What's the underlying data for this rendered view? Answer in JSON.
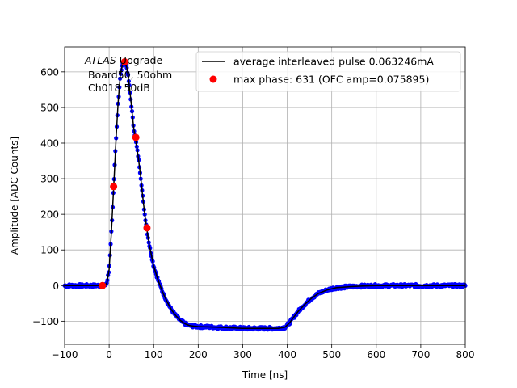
{
  "chart_data": {
    "type": "line",
    "title": "",
    "xlabel": "Time [ns]",
    "ylabel": "Amplitude [ADC Counts]",
    "xlim": [
      -100,
      800
    ],
    "ylim": [
      -165,
      670
    ],
    "xticks": [
      -100,
      0,
      100,
      200,
      300,
      400,
      500,
      600,
      700,
      800
    ],
    "yticks": [
      -100,
      0,
      100,
      200,
      300,
      400,
      500,
      600
    ],
    "grid": true,
    "legend_position": "top-right",
    "annotation": {
      "italic_part": "ATLAS",
      "rest_line1": " Upgrade",
      "line2": " Board50, 50ohm",
      "line3": " Ch018 50dB"
    },
    "series": [
      {
        "name": "average interleaved pulse 0.063246mA",
        "style": "line",
        "color": "#000000",
        "x": [
          -100,
          -50,
          -20,
          -10,
          -5,
          0,
          5,
          10,
          15,
          20,
          25,
          30,
          35,
          40,
          45,
          50,
          55,
          60,
          65,
          70,
          75,
          80,
          85,
          90,
          95,
          100,
          110,
          120,
          130,
          140,
          150,
          160,
          170,
          180,
          190,
          200,
          220,
          240,
          260,
          280,
          300,
          320,
          340,
          360,
          380,
          395,
          405,
          415,
          425,
          440,
          455,
          470,
          490,
          510,
          540,
          570,
          600,
          650,
          700,
          750,
          800
        ],
        "y": [
          0,
          0,
          0,
          0,
          8,
          45,
          150,
          270,
          400,
          510,
          590,
          622,
          628,
          610,
          565,
          505,
          445,
          405,
          365,
          315,
          255,
          200,
          155,
          115,
          85,
          55,
          15,
          -18,
          -45,
          -68,
          -85,
          -98,
          -107,
          -112,
          -114,
          -115,
          -116,
          -117,
          -118,
          -119,
          -120,
          -120,
          -120,
          -120,
          -120,
          -117,
          -105,
          -88,
          -72,
          -52,
          -35,
          -22,
          -12,
          -6,
          -3,
          -1,
          0,
          0,
          0,
          0,
          0
        ]
      },
      {
        "name": "",
        "style": "dense-samples",
        "color": "#0000ff"
      },
      {
        "name": "max phase: 631 (OFC amp=0.075895)",
        "style": "markers",
        "color": "#ff0000",
        "x": [
          -15,
          10,
          35,
          60,
          85
        ],
        "y": [
          0,
          278,
          628,
          416,
          162
        ]
      }
    ]
  }
}
